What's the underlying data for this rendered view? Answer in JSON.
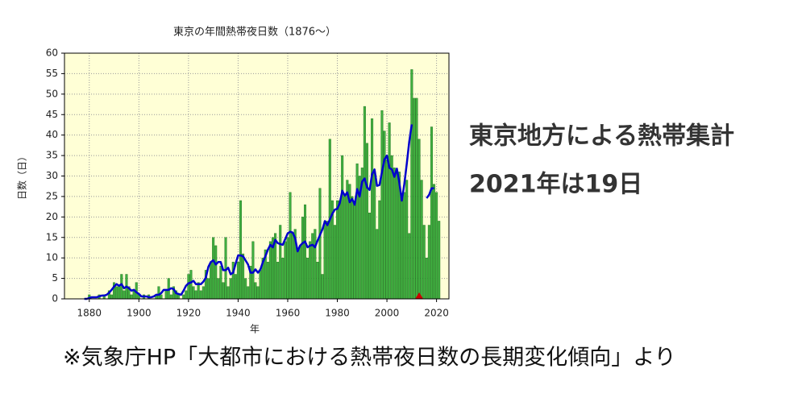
{
  "chart_data": {
    "type": "bar",
    "title": "東京の年間熱帯夜日数（1876～）",
    "xlabel": "年",
    "ylabel": "日数（日）",
    "x": [
      1876,
      1877,
      1878,
      1879,
      1880,
      1881,
      1882,
      1883,
      1884,
      1885,
      1886,
      1887,
      1888,
      1889,
      1890,
      1891,
      1892,
      1893,
      1894,
      1895,
      1896,
      1897,
      1898,
      1899,
      1900,
      1901,
      1902,
      1903,
      1904,
      1905,
      1906,
      1907,
      1908,
      1909,
      1910,
      1911,
      1912,
      1913,
      1914,
      1915,
      1916,
      1917,
      1918,
      1919,
      1920,
      1921,
      1922,
      1923,
      1924,
      1925,
      1926,
      1927,
      1928,
      1929,
      1930,
      1931,
      1932,
      1933,
      1934,
      1935,
      1936,
      1937,
      1938,
      1939,
      1940,
      1941,
      1942,
      1943,
      1944,
      1945,
      1946,
      1947,
      1948,
      1949,
      1950,
      1951,
      1952,
      1953,
      1954,
      1955,
      1956,
      1957,
      1958,
      1959,
      1960,
      1961,
      1962,
      1963,
      1964,
      1965,
      1966,
      1967,
      1968,
      1969,
      1970,
      1971,
      1972,
      1973,
      1974,
      1975,
      1976,
      1977,
      1978,
      1979,
      1980,
      1981,
      1982,
      1983,
      1984,
      1985,
      1986,
      1987,
      1988,
      1989,
      1990,
      1991,
      1992,
      1993,
      1994,
      1995,
      1996,
      1997,
      1998,
      1999,
      2000,
      2001,
      2002,
      2003,
      2004,
      2005,
      2006,
      2007,
      2008,
      2009,
      2010,
      2011,
      2012,
      2013,
      2014,
      2015,
      2016,
      2017,
      2018,
      2019,
      2020,
      2021
    ],
    "series": [
      {
        "color": "#3fae3f",
        "values": [
          0,
          0,
          0,
          0,
          1,
          0,
          0,
          0,
          1,
          0,
          1,
          0,
          2,
          1,
          4,
          3,
          3,
          6,
          2,
          6,
          3,
          1,
          2,
          4,
          1,
          0,
          1,
          0,
          1,
          0,
          0,
          1,
          3,
          1,
          0,
          2,
          5,
          1,
          3,
          2,
          1,
          0,
          1,
          2,
          6,
          7,
          3,
          2,
          4,
          2,
          3,
          7,
          5,
          9,
          15,
          13,
          5,
          8,
          4,
          15,
          3,
          5,
          9,
          6,
          9,
          24,
          11,
          5,
          3,
          8,
          14,
          4,
          3,
          7,
          10,
          12,
          9,
          14,
          15,
          16,
          9,
          18,
          10,
          14,
          15,
          26,
          16,
          17,
          12,
          13,
          20,
          23,
          10,
          14,
          16,
          17,
          9,
          27,
          6,
          19,
          19,
          39,
          24,
          18,
          24,
          24,
          35,
          25,
          29,
          28,
          25,
          23,
          33,
          30,
          32,
          47,
          38,
          21,
          44,
          31,
          17,
          24,
          46,
          41,
          34,
          43,
          35,
          32,
          31,
          31,
          25,
          26,
          29,
          16,
          56,
          49,
          49,
          39,
          29,
          18,
          10,
          18,
          42,
          28,
          26,
          19
        ]
      },
      {
        "color": "#0000cc",
        "values": [
          null,
          null,
          0,
          0,
          0.2,
          0.4,
          0.4,
          0.4,
          0.6,
          0.8,
          0.8,
          1,
          1.5,
          2.2,
          3,
          3.6,
          3.2,
          3.6,
          2.6,
          3,
          2.6,
          2,
          2.2,
          1.6,
          1.2,
          0.6,
          0.6,
          0.6,
          0.4,
          0.4,
          0.6,
          1,
          1,
          1.4,
          2.2,
          2.2,
          2.2,
          2.6,
          2.4,
          1.4,
          1.2,
          1,
          2,
          3.2,
          3.8,
          4,
          4.4,
          3.6,
          3.6,
          3.6,
          4.2,
          5.2,
          7.8,
          9,
          9.4,
          8.4,
          9,
          9,
          7,
          7,
          7.6,
          6,
          6.4,
          8.6,
          10.6,
          10.6,
          10.4,
          9.4,
          8.4,
          6.4,
          6.4,
          7.2,
          6.4,
          7.2,
          9,
          10.4,
          12,
          13.2,
          12.6,
          14.4,
          13.6,
          13.4,
          13.2,
          14.6,
          16,
          16.4,
          16.2,
          14.8,
          11.6,
          13,
          13.6,
          14,
          12.6,
          13,
          13.2,
          12.6,
          14.2,
          15.6,
          17,
          19,
          18,
          19.4,
          20.8,
          21.8,
          22,
          23.4,
          26.4,
          25.2,
          26,
          23.6,
          24.4,
          23,
          26.8,
          25,
          28.6,
          29.4,
          27.2,
          26.6,
          30.4,
          31.6,
          27.6,
          27.8,
          31,
          34,
          35,
          32,
          31.6,
          29.8,
          31.8,
          28.4,
          24,
          28,
          33,
          38.4,
          42.6,
          null,
          null,
          null,
          null,
          null,
          24.6,
          25.4,
          27,
          27,
          null,
          null
        ]
      }
    ],
    "markers": [
      {
        "x": 2013,
        "value": 0,
        "color": "#cc0000"
      }
    ],
    "xlim": [
      1870,
      2025
    ],
    "xticks": [
      1880,
      1900,
      1920,
      1940,
      1960,
      1980,
      2000,
      2020
    ],
    "ylim": [
      0,
      60
    ],
    "yticks": [
      0,
      5,
      10,
      15,
      20,
      25,
      30,
      35,
      40,
      45,
      50,
      55,
      60
    ],
    "grid": true,
    "background": "#ffffd6"
  },
  "annotations": [
    "東京地方による熱帯集計",
    "2021年は19日"
  ],
  "source": "※気象庁HP「大都市における熱帯夜日数の長期変化傾向」より"
}
